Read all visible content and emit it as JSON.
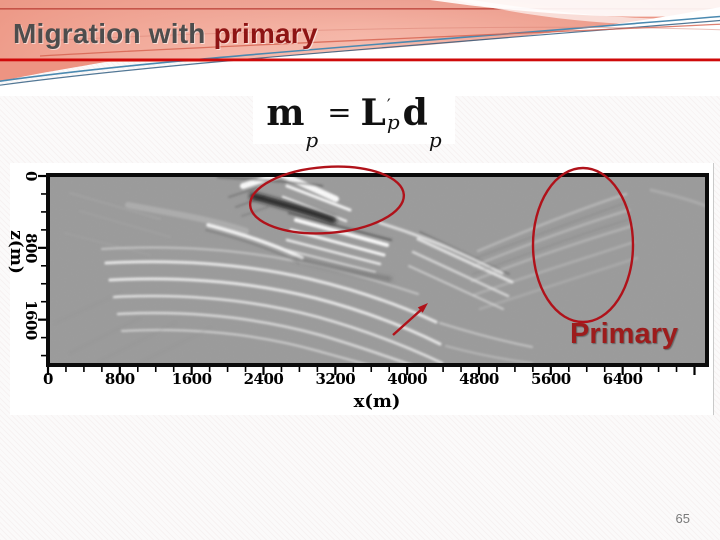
{
  "slide": {
    "title_prefix": "Migration with",
    "title_highlight": "primary",
    "page_number": "65"
  },
  "formula": {
    "m": "m",
    "m_sub": "p",
    "eq": "=",
    "L": "L",
    "L_prime": "′",
    "L_sub": "p",
    "d": "d",
    "d_sub": "p"
  },
  "figure": {
    "type": "seismic-image",
    "x_axis": {
      "label": "x(m)",
      "ticks": [
        "0",
        "800",
        "1600",
        "2400",
        "3200",
        "4000",
        "4800",
        "5600",
        "6400"
      ],
      "range_m": [
        0,
        7300
      ],
      "minor_step_m": 200
    },
    "y_axis": {
      "label": "z(m)",
      "ticks": [
        "0",
        "800",
        "1600"
      ],
      "range_m": [
        0,
        2100
      ],
      "minor_step_m": 200
    },
    "primary_label": "Primary"
  },
  "colors": {
    "accent_rule_red": "#cf0a0a",
    "title_gray": "#4d4d4d",
    "title_red": "#8e1414",
    "annotation_red": "#b0121a",
    "primary_label_red": "#9d1c1c",
    "seismic_background": "#9c9c9c",
    "header_salmon": "#ee9b89"
  }
}
